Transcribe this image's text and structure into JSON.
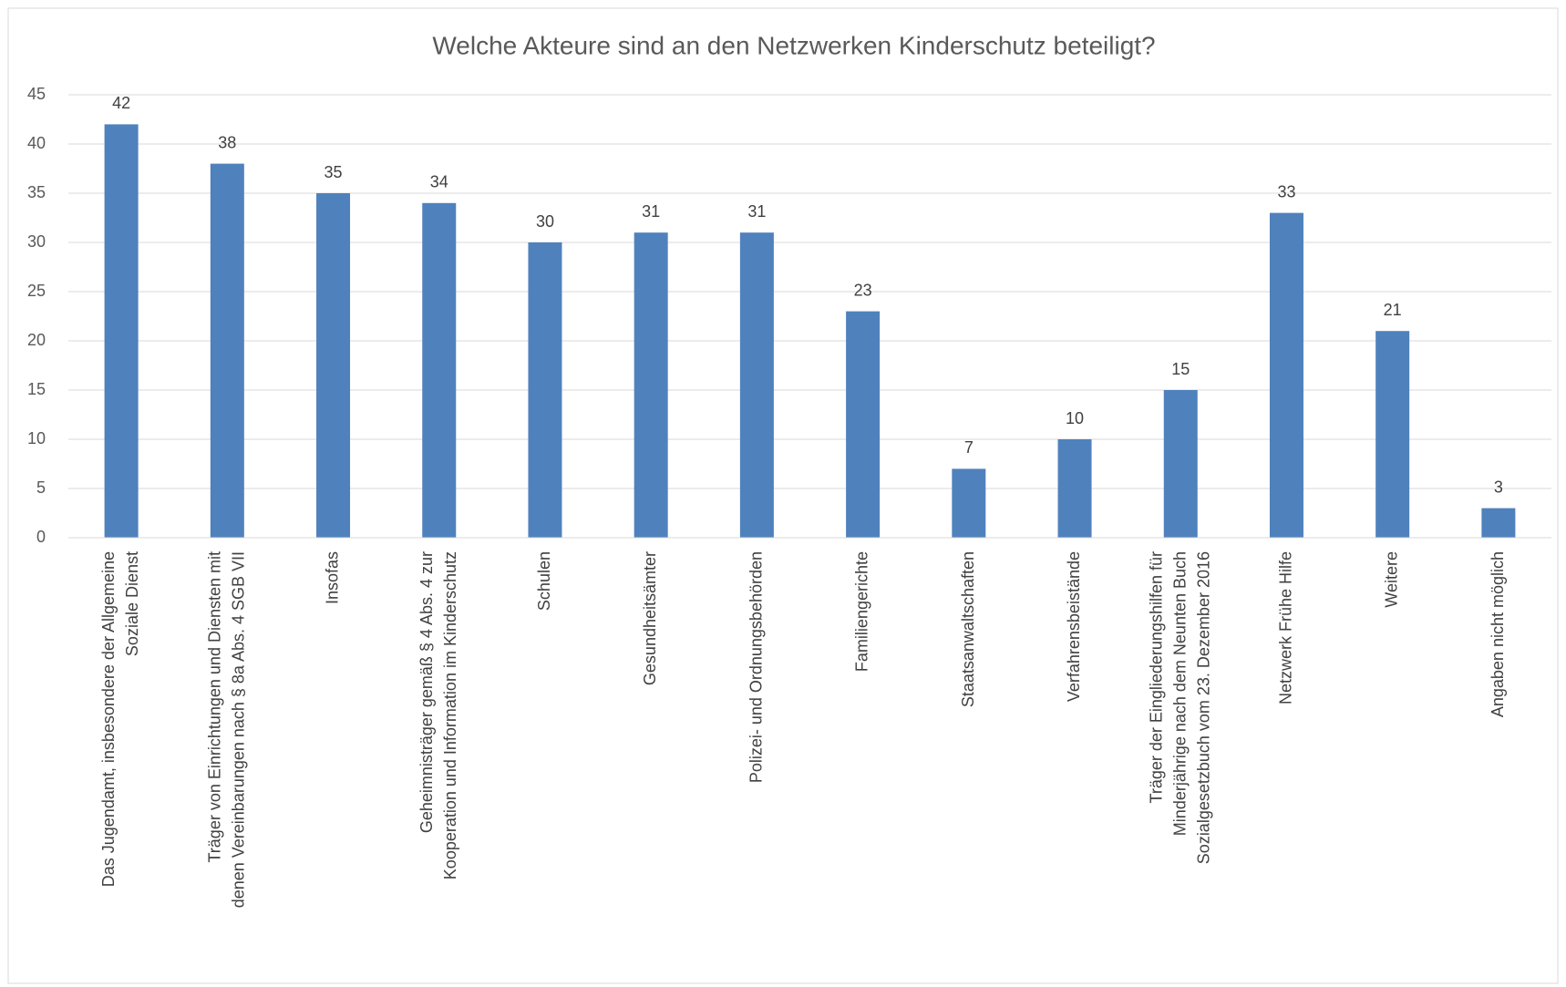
{
  "chart_data": {
    "type": "bar",
    "title": "Welche Akteure sind an den Netzwerken Kinderschutz beteiligt?",
    "categories": [
      "Das Jugendamt, insbesondere der Allgemeine\nSoziale Dienst",
      "Träger von Einrichtungen und Diensten mit\ndenen Vereinbarungen nach § 8a Abs. 4 SGB VII",
      "Insofas",
      "Geheimnisträger gemäß § 4 Abs. 4 zur\nKooperation und Information im Kinderschutz",
      "Schulen",
      "Gesundheitsämter",
      "Polizei- und Ordnungsbehörden",
      "Familiengerichte",
      "Staatsanwaltschaften",
      "Verfahrensbeistände",
      "Träger der Eingliederungshilfen für\nMinderjährige nach dem Neunten Buch\nSozialgesetzbuch vom 23. Dezember 2016",
      "Netzwerk Frühe Hilfe",
      "Weitere",
      "Angaben nicht möglich"
    ],
    "values": [
      42,
      38,
      35,
      34,
      30,
      31,
      31,
      23,
      7,
      10,
      15,
      33,
      21,
      3
    ],
    "color": "#4f81bd",
    "ylim": [
      0,
      45
    ],
    "yticks": [
      0,
      5,
      10,
      15,
      20,
      25,
      30,
      35,
      40,
      45
    ],
    "grid": true,
    "data_labels": true
  }
}
